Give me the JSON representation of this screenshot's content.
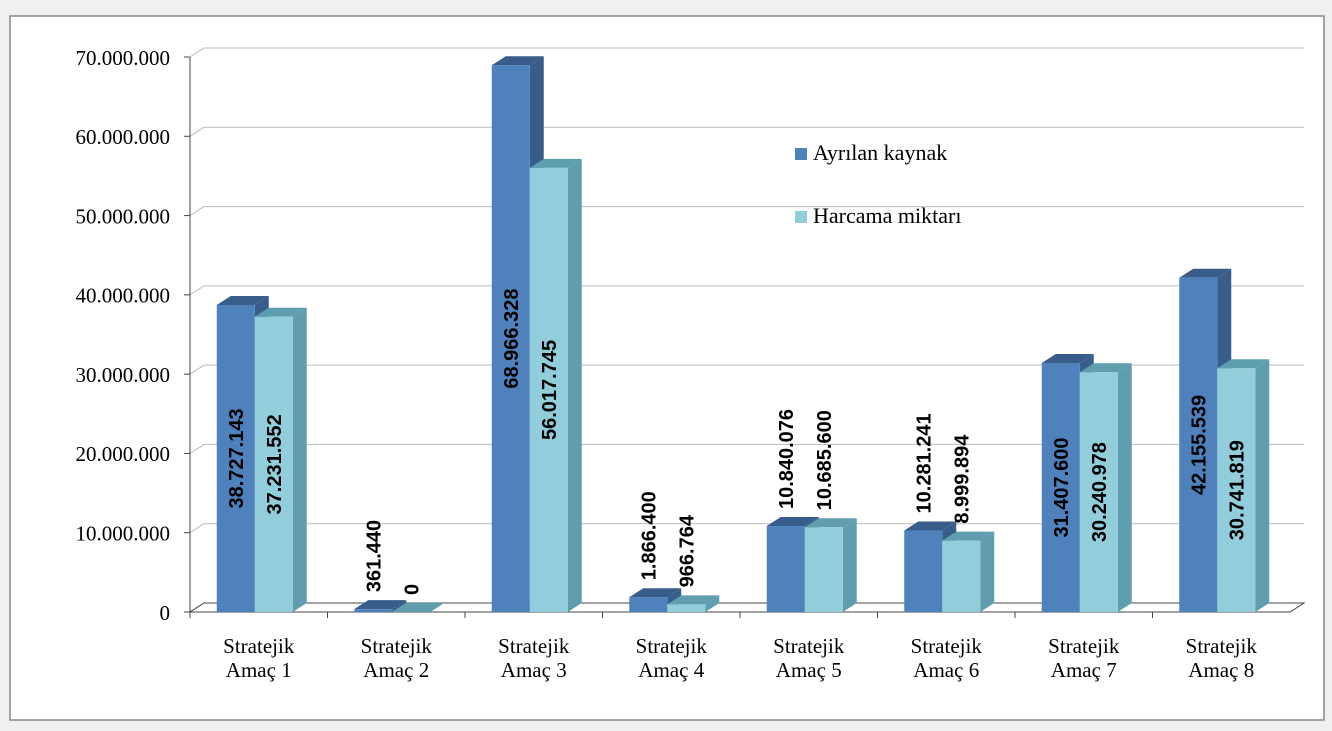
{
  "chart_data": {
    "type": "bar3d",
    "categories": [
      "Stratejik Amaç 1",
      "Stratejik Amaç 2",
      "Stratejik Amaç 3",
      "Stratejik Amaç 4",
      "Stratejik Amaç 5",
      "Stratejik Amaç 6",
      "Stratejik Amaç 7",
      "Stratejik Amaç 8"
    ],
    "series": [
      {
        "name": "Ayrılan kaynak",
        "color": "#4f81bd",
        "side": "#385d8a",
        "values": [
          38727143,
          361440,
          68966328,
          1866400,
          10840076,
          10281241,
          31407600,
          42155539
        ],
        "value_labels": [
          "38.727.143",
          "361.440",
          "68.966.328",
          "1.866.400",
          "10.840.076",
          "10.281.241",
          "31.407.600",
          "42.155.539"
        ]
      },
      {
        "name": "Harcama miktarı",
        "color": "#92cddc",
        "side": "#5f9eae",
        "values": [
          37231552,
          0,
          56017745,
          966764,
          10685600,
          8999894,
          30240978,
          30741819
        ],
        "value_labels": [
          "37.231.552",
          "0",
          "56.017.745",
          "966.764",
          "10.685.600",
          "8.999.894",
          "30.240.978",
          "30.741.819"
        ]
      }
    ],
    "ylim": [
      0,
      70000000
    ],
    "yticks": [
      0,
      {
        "value": 10000000,
        "label": "10.000.000"
      },
      {
        "value": 20000000,
        "label": "20.000.000"
      },
      {
        "value": 30000000,
        "label": "30.000.000"
      },
      {
        "value": 40000000,
        "label": "40.000.000"
      },
      {
        "value": 50000000,
        "label": "50.000.000"
      },
      {
        "value": 60000000,
        "label": "60.000.000"
      },
      {
        "value": 70000000,
        "label": "70.000.000"
      }
    ],
    "grid": true
  }
}
